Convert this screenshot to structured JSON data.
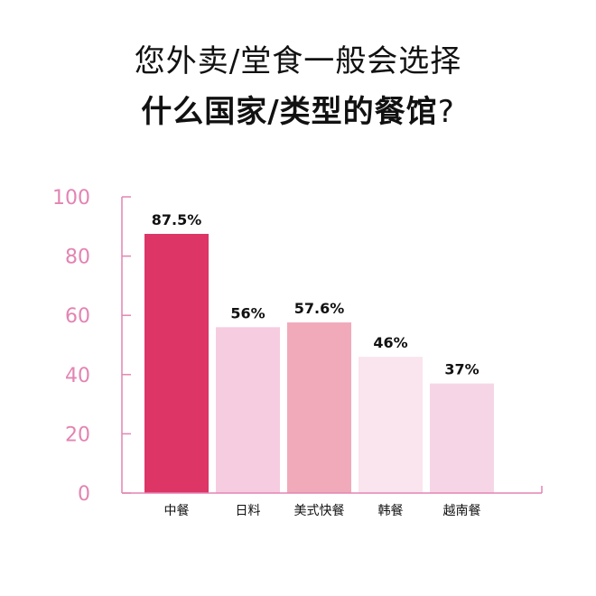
{
  "title": {
    "line1": "您外卖/堂食一般会选择",
    "line2_bold": "什么国家/类型的餐馆",
    "line2_suffix": "?"
  },
  "chart_data": {
    "type": "bar",
    "categories": [
      "中餐",
      "日料",
      "美式快餐",
      "韩餐",
      "越南餐"
    ],
    "values": [
      87.5,
      56,
      57.6,
      46,
      37
    ],
    "value_labels": [
      "87.5%",
      "56%",
      "57.6%",
      "46%",
      "37%"
    ],
    "bar_colors": [
      "#dc3566",
      "#f6cce0",
      "#f0aab9",
      "#fae4ee",
      "#f6d6e6"
    ],
    "ylim": [
      0,
      100
    ],
    "yticks": [
      0,
      20,
      40,
      60,
      80,
      100
    ],
    "axis_color": "#e384b2",
    "grid": false,
    "legend": "none"
  }
}
